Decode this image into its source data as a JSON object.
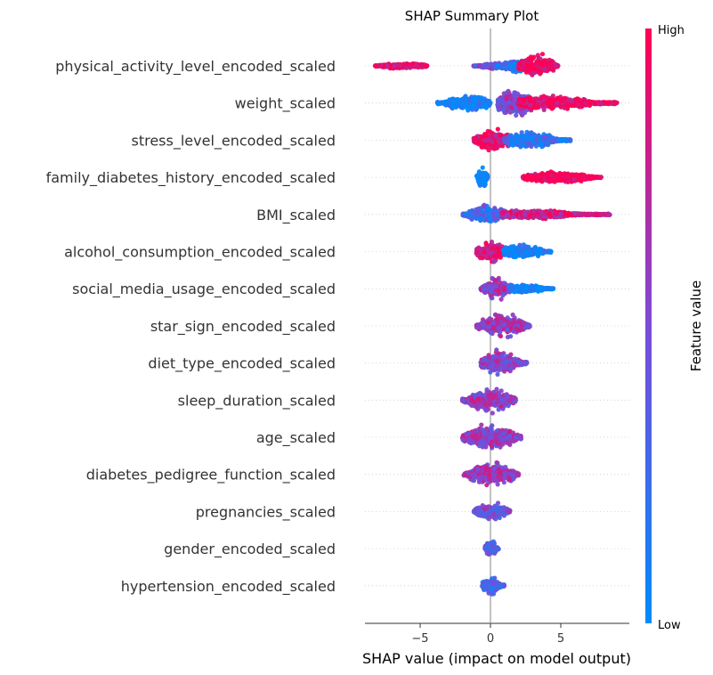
{
  "chart_data": {
    "type": "scatter",
    "title": "SHAP Summary Plot",
    "xlabel": "SHAP value (impact on model output)",
    "xlim": [
      -8.8,
      9.8
    ],
    "xticks": [
      -5,
      0,
      5
    ],
    "xtick_labels": [
      "−5",
      "0",
      "5"
    ],
    "colorbar": {
      "label": "Feature value",
      "high": "High",
      "low": "Low",
      "low_color": "#008bfb",
      "high_color": "#ff0052"
    },
    "features": [
      {
        "name": "physical_activity_level_encoded_scaled",
        "clusters": [
          {
            "min": -8.2,
            "max": -4.5,
            "center": -6.2,
            "hw": 4,
            "value": 0.92
          },
          {
            "min": -1.2,
            "max": 1.7,
            "center": 0.5,
            "hw": 4,
            "value": 0.45
          },
          {
            "min": 0.5,
            "max": 3.0,
            "center": 1.9,
            "hw": 8,
            "value": 0.15
          },
          {
            "min": 2.0,
            "max": 4.8,
            "center": 3.3,
            "hw": 17,
            "value": 0.97
          }
        ]
      },
      {
        "name": "weight_scaled",
        "clusters": [
          {
            "min": -3.8,
            "max": 0.0,
            "center": -1.5,
            "hw": 10,
            "value": 0.05
          },
          {
            "min": 0.5,
            "max": 4.0,
            "center": 1.7,
            "hw": 18,
            "value": 0.55
          },
          {
            "min": 2.0,
            "max": 9.0,
            "center": 4.0,
            "hw": 10,
            "value": 0.95
          }
        ]
      },
      {
        "name": "stress_level_encoded_scaled",
        "clusters": [
          {
            "min": -1.2,
            "max": 1.8,
            "center": 0.2,
            "hw": 14,
            "value": 0.92
          },
          {
            "min": 1.0,
            "max": 5.7,
            "center": 2.6,
            "hw": 11,
            "value": 0.2
          }
        ]
      },
      {
        "name": "family_diabetes_history_encoded_scaled",
        "clusters": [
          {
            "min": -1.0,
            "max": -0.2,
            "center": -0.55,
            "hw": 16,
            "value": 0.0
          },
          {
            "min": 2.3,
            "max": 7.9,
            "center": 4.8,
            "hw": 7,
            "value": 1.0
          }
        ]
      },
      {
        "name": "BMI_scaled",
        "clusters": [
          {
            "min": -2.0,
            "max": 1.2,
            "center": -0.2,
            "hw": 13,
            "value": 0.3
          },
          {
            "min": 0.8,
            "max": 8.5,
            "center": 2.8,
            "hw": 6,
            "value": 0.8
          }
        ]
      },
      {
        "name": "alcohol_consumption_encoded_scaled",
        "clusters": [
          {
            "min": -1.0,
            "max": 1.2,
            "center": 0.0,
            "hw": 16,
            "value": 0.85
          },
          {
            "min": 0.9,
            "max": 4.3,
            "center": 2.2,
            "hw": 10,
            "value": 0.05
          }
        ]
      },
      {
        "name": "social_media_usage_encoded_scaled",
        "clusters": [
          {
            "min": -0.7,
            "max": 1.6,
            "center": 0.5,
            "hw": 16,
            "value": 0.6
          },
          {
            "min": 1.4,
            "max": 4.5,
            "center": 2.4,
            "hw": 6,
            "value": 0.05
          }
        ]
      },
      {
        "name": "star_sign_encoded_scaled",
        "clusters": [
          {
            "min": -1.0,
            "max": 2.8,
            "center": 0.8,
            "hw": 16,
            "value": 0.6
          }
        ]
      },
      {
        "name": "diet_type_encoded_scaled",
        "clusters": [
          {
            "min": -0.7,
            "max": 2.6,
            "center": 0.6,
            "hw": 16,
            "value": 0.55
          }
        ]
      },
      {
        "name": "sleep_duration_scaled",
        "clusters": [
          {
            "min": -2.0,
            "max": 1.8,
            "center": 0.0,
            "hw": 16,
            "value": 0.6
          }
        ]
      },
      {
        "name": "age_scaled",
        "clusters": [
          {
            "min": -2.0,
            "max": 2.2,
            "center": 0.0,
            "hw": 16,
            "value": 0.6
          }
        ]
      },
      {
        "name": "diabetes_pedigree_function_scaled",
        "clusters": [
          {
            "min": -1.9,
            "max": 2.0,
            "center": 0.1,
            "hw": 16,
            "value": 0.6
          }
        ]
      },
      {
        "name": "pregnancies_scaled",
        "clusters": [
          {
            "min": -1.2,
            "max": 1.4,
            "center": 0.1,
            "hw": 12,
            "value": 0.45
          }
        ]
      },
      {
        "name": "gender_encoded_scaled",
        "clusters": [
          {
            "min": -0.4,
            "max": 0.6,
            "center": 0.0,
            "hw": 11,
            "value": 0.4
          }
        ]
      },
      {
        "name": "hypertension_encoded_scaled",
        "clusters": [
          {
            "min": -0.6,
            "max": 1.0,
            "center": 0.0,
            "hw": 13,
            "value": 0.3
          }
        ]
      }
    ]
  }
}
